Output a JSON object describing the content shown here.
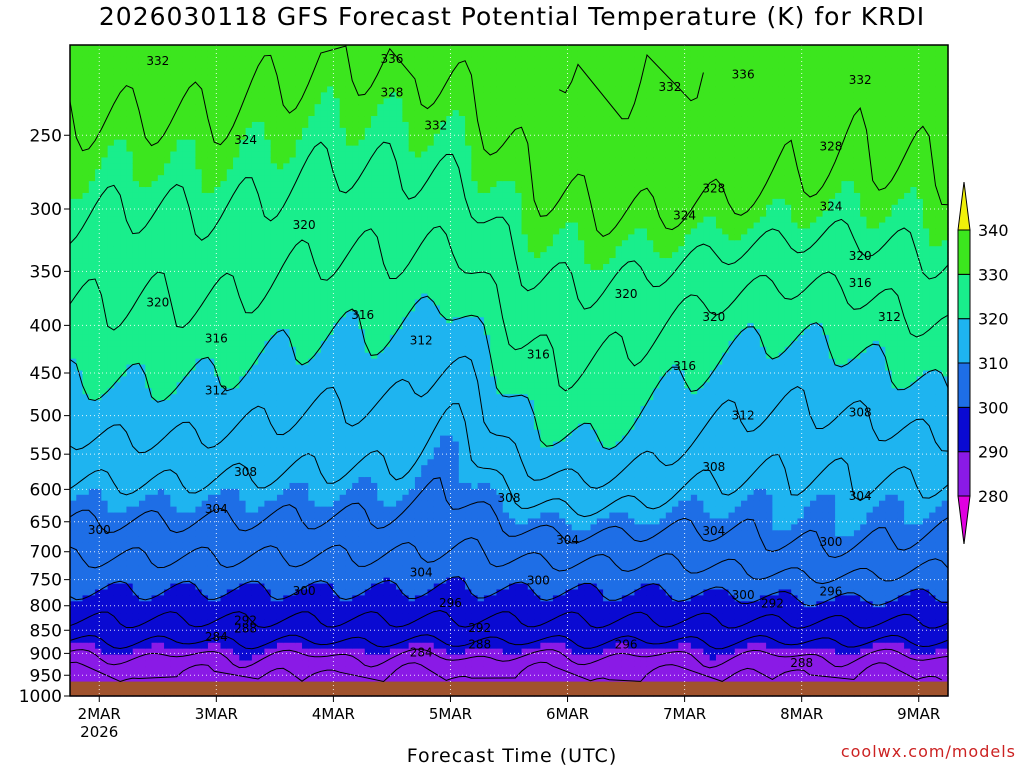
{
  "chart_data": {
    "type": "contour-filled",
    "title": "2026030118 GFS Forecast Potential Temperature (K) for KRDI",
    "xlabel": "Forecast Time (UTC)",
    "ylabel": "",
    "credit": "coolwx.com/models",
    "x_axis": {
      "range": [
        "2026-03-01 18Z",
        "2026-03-09 06Z"
      ],
      "ticks": [
        {
          "label": "2MAR",
          "sublabel": "2026",
          "value": "2026-03-02 00Z"
        },
        {
          "label": "3MAR",
          "sublabel": "",
          "value": "2026-03-03 00Z"
        },
        {
          "label": "4MAR",
          "sublabel": "",
          "value": "2026-03-04 00Z"
        },
        {
          "label": "5MAR",
          "sublabel": "",
          "value": "2026-03-05 00Z"
        },
        {
          "label": "6MAR",
          "sublabel": "",
          "value": "2026-03-06 00Z"
        },
        {
          "label": "7MAR",
          "sublabel": "",
          "value": "2026-03-07 00Z"
        },
        {
          "label": "8MAR",
          "sublabel": "",
          "value": "2026-03-08 00Z"
        },
        {
          "label": "9MAR",
          "sublabel": "",
          "value": "2026-03-09 00Z"
        }
      ]
    },
    "y_axis": {
      "units": "hPa",
      "reversed": true,
      "range": [
        1000,
        200
      ],
      "ticks": [
        250,
        300,
        350,
        400,
        450,
        500,
        550,
        600,
        650,
        700,
        750,
        800,
        850,
        900,
        950,
        1000
      ]
    },
    "colorbar": {
      "levels": [
        280,
        290,
        300,
        310,
        320,
        330,
        340
      ],
      "colors": [
        "#e000e0",
        "#8a1ae6",
        "#0a0ad2",
        "#1e6ee6",
        "#1eb4f0",
        "#19ee8c",
        "#3ce61e",
        "#f0f00a"
      ]
    },
    "grid": true,
    "contour_labels": [
      {
        "text": "332",
        "t": "2026-03-02 12Z",
        "p": 208
      },
      {
        "text": "336",
        "t": "2026-03-04 12Z",
        "p": 207
      },
      {
        "text": "328",
        "t": "2026-03-04 12Z",
        "p": 225
      },
      {
        "text": "332",
        "t": "2026-03-04 21Z",
        "p": 244
      },
      {
        "text": "324",
        "t": "2026-03-03 06Z",
        "p": 253
      },
      {
        "text": "332",
        "t": "2026-03-06 21Z",
        "p": 222
      },
      {
        "text": "336",
        "t": "2026-03-07 12Z",
        "p": 215
      },
      {
        "text": "332",
        "t": "2026-03-08 12Z",
        "p": 218
      },
      {
        "text": "328",
        "t": "2026-03-08 06Z",
        "p": 257
      },
      {
        "text": "328",
        "t": "2026-03-07 06Z",
        "p": 285
      },
      {
        "text": "324",
        "t": "2026-03-07 00Z",
        "p": 305
      },
      {
        "text": "324",
        "t": "2026-03-08 06Z",
        "p": 298
      },
      {
        "text": "320",
        "t": "2026-03-03 18Z",
        "p": 312
      },
      {
        "text": "320",
        "t": "2026-03-08 12Z",
        "p": 337
      },
      {
        "text": "316",
        "t": "2026-03-08 12Z",
        "p": 360
      },
      {
        "text": "320",
        "t": "2026-03-02 12Z",
        "p": 378
      },
      {
        "text": "320",
        "t": "2026-03-06 12Z",
        "p": 370
      },
      {
        "text": "320",
        "t": "2026-03-07 06Z",
        "p": 392
      },
      {
        "text": "316",
        "t": "2026-03-04 06Z",
        "p": 390
      },
      {
        "text": "312",
        "t": "2026-03-08 18Z",
        "p": 392
      },
      {
        "text": "316",
        "t": "2026-03-03 00Z",
        "p": 413
      },
      {
        "text": "312",
        "t": "2026-03-04 18Z",
        "p": 415
      },
      {
        "text": "316",
        "t": "2026-03-05 18Z",
        "p": 430
      },
      {
        "text": "316",
        "t": "2026-03-07 00Z",
        "p": 442
      },
      {
        "text": "312",
        "t": "2026-03-03 00Z",
        "p": 470
      },
      {
        "text": "308",
        "t": "2026-03-08 12Z",
        "p": 496
      },
      {
        "text": "312",
        "t": "2026-03-07 12Z",
        "p": 500
      },
      {
        "text": "308",
        "t": "2026-03-03 06Z",
        "p": 575
      },
      {
        "text": "308",
        "t": "2026-03-07 06Z",
        "p": 568
      },
      {
        "text": "304",
        "t": "2026-03-03 00Z",
        "p": 630
      },
      {
        "text": "308",
        "t": "2026-03-05 12Z",
        "p": 613
      },
      {
        "text": "304",
        "t": "2026-03-08 12Z",
        "p": 610
      },
      {
        "text": "300",
        "t": "2026-03-02 00Z",
        "p": 663
      },
      {
        "text": "304",
        "t": "2026-03-06 00Z",
        "p": 680
      },
      {
        "text": "304",
        "t": "2026-03-07 06Z",
        "p": 665
      },
      {
        "text": "300",
        "t": "2026-03-08 06Z",
        "p": 683
      },
      {
        "text": "304",
        "t": "2026-03-04 18Z",
        "p": 737
      },
      {
        "text": "300",
        "t": "2026-03-05 18Z",
        "p": 752
      },
      {
        "text": "300",
        "t": "2026-03-03 18Z",
        "p": 771
      },
      {
        "text": "296",
        "t": "2026-03-08 06Z",
        "p": 772
      },
      {
        "text": "300",
        "t": "2026-03-07 12Z",
        "p": 779
      },
      {
        "text": "296",
        "t": "2026-03-05 00Z",
        "p": 795
      },
      {
        "text": "292",
        "t": "2026-03-07 18Z",
        "p": 796
      },
      {
        "text": "292",
        "t": "2026-03-03 06Z",
        "p": 830
      },
      {
        "text": "288",
        "t": "2026-03-03 06Z",
        "p": 846
      },
      {
        "text": "292",
        "t": "2026-03-05 06Z",
        "p": 845
      },
      {
        "text": "284",
        "t": "2026-03-03 00Z",
        "p": 864
      },
      {
        "text": "296",
        "t": "2026-03-06 12Z",
        "p": 880
      },
      {
        "text": "288",
        "t": "2026-03-05 06Z",
        "p": 880
      },
      {
        "text": "284",
        "t": "2026-03-04 18Z",
        "p": 898
      },
      {
        "text": "288",
        "t": "2026-03-08 00Z",
        "p": 922
      }
    ]
  }
}
